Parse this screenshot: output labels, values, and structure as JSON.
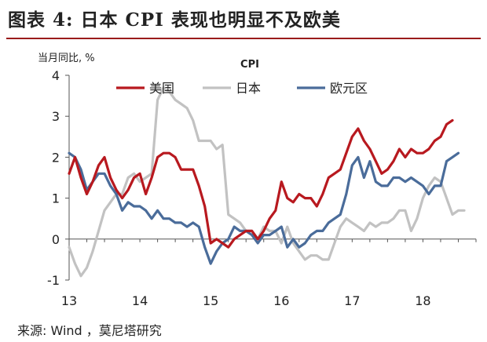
{
  "figure": {
    "title": "图表 4:  日本 CPI 表现也明显不及欧美",
    "source": "来源: Wind ，莫尼塔研究"
  },
  "chart_data": {
    "type": "line",
    "title": "CPI",
    "ylabel": "当月同比, %",
    "xlabel": "",
    "ylim": [
      -1,
      4
    ],
    "yticks": [
      -1,
      0,
      1,
      2,
      3,
      4
    ],
    "xlim": [
      0,
      69
    ],
    "xticks": [
      {
        "x": 0,
        "label": "13"
      },
      {
        "x": 12,
        "label": "14"
      },
      {
        "x": 24,
        "label": "15"
      },
      {
        "x": 36,
        "label": "16"
      },
      {
        "x": 48,
        "label": "17"
      },
      {
        "x": 60,
        "label": "18"
      }
    ],
    "grid": false,
    "legend": "top, horizontal",
    "series": [
      {
        "name": "美国",
        "color": "#b8191f",
        "values": [
          1.6,
          2.0,
          1.5,
          1.1,
          1.4,
          1.8,
          2.0,
          1.5,
          1.2,
          1.0,
          1.2,
          1.5,
          1.6,
          1.1,
          1.5,
          2.0,
          2.1,
          2.1,
          2.0,
          1.7,
          1.7,
          1.7,
          1.3,
          0.8,
          -0.1,
          0.0,
          -0.1,
          -0.2,
          0.0,
          0.1,
          0.2,
          0.2,
          0.0,
          0.2,
          0.5,
          0.7,
          1.4,
          1.0,
          0.9,
          1.1,
          1.0,
          1.0,
          0.8,
          1.1,
          1.5,
          1.6,
          1.7,
          2.1,
          2.5,
          2.7,
          2.4,
          2.2,
          1.9,
          1.6,
          1.7,
          1.9,
          2.2,
          2.0,
          2.2,
          2.1,
          2.1,
          2.2,
          2.4,
          2.5,
          2.8,
          2.9
        ]
      },
      {
        "name": "日本",
        "color": "#c2c2c2",
        "values": [
          -0.2,
          -0.6,
          -0.9,
          -0.7,
          -0.3,
          0.2,
          0.7,
          0.9,
          1.1,
          1.1,
          1.5,
          1.6,
          1.4,
          1.5,
          1.6,
          3.4,
          3.7,
          3.6,
          3.4,
          3.3,
          3.2,
          2.9,
          2.4,
          2.4,
          2.4,
          2.2,
          2.3,
          0.6,
          0.5,
          0.4,
          0.2,
          0.2,
          0.0,
          0.3,
          0.2,
          0.2,
          -0.1,
          0.3,
          -0.1,
          -0.3,
          -0.5,
          -0.4,
          -0.4,
          -0.5,
          -0.5,
          -0.1,
          0.3,
          0.5,
          0.4,
          0.3,
          0.2,
          0.4,
          0.3,
          0.4,
          0.4,
          0.5,
          0.7,
          0.7,
          0.2,
          0.5,
          1.0,
          1.3,
          1.5,
          1.4,
          1.0,
          0.6,
          0.7,
          0.7
        ]
      },
      {
        "name": "欧元区",
        "color": "#4a6c9a",
        "values": [
          2.1,
          2.0,
          1.7,
          1.2,
          1.4,
          1.6,
          1.6,
          1.3,
          1.1,
          0.7,
          0.9,
          0.8,
          0.8,
          0.7,
          0.5,
          0.7,
          0.5,
          0.5,
          0.4,
          0.4,
          0.3,
          0.4,
          0.3,
          -0.2,
          -0.6,
          -0.3,
          -0.1,
          0.0,
          0.3,
          0.2,
          0.2,
          0.1,
          -0.1,
          0.1,
          0.1,
          0.2,
          0.3,
          -0.2,
          0.0,
          -0.2,
          -0.1,
          0.1,
          0.2,
          0.2,
          0.4,
          0.5,
          0.6,
          1.1,
          1.8,
          2.0,
          1.5,
          1.9,
          1.4,
          1.3,
          1.3,
          1.5,
          1.5,
          1.4,
          1.5,
          1.4,
          1.3,
          1.1,
          1.3,
          1.3,
          1.9,
          2.0,
          2.1
        ]
      }
    ]
  }
}
